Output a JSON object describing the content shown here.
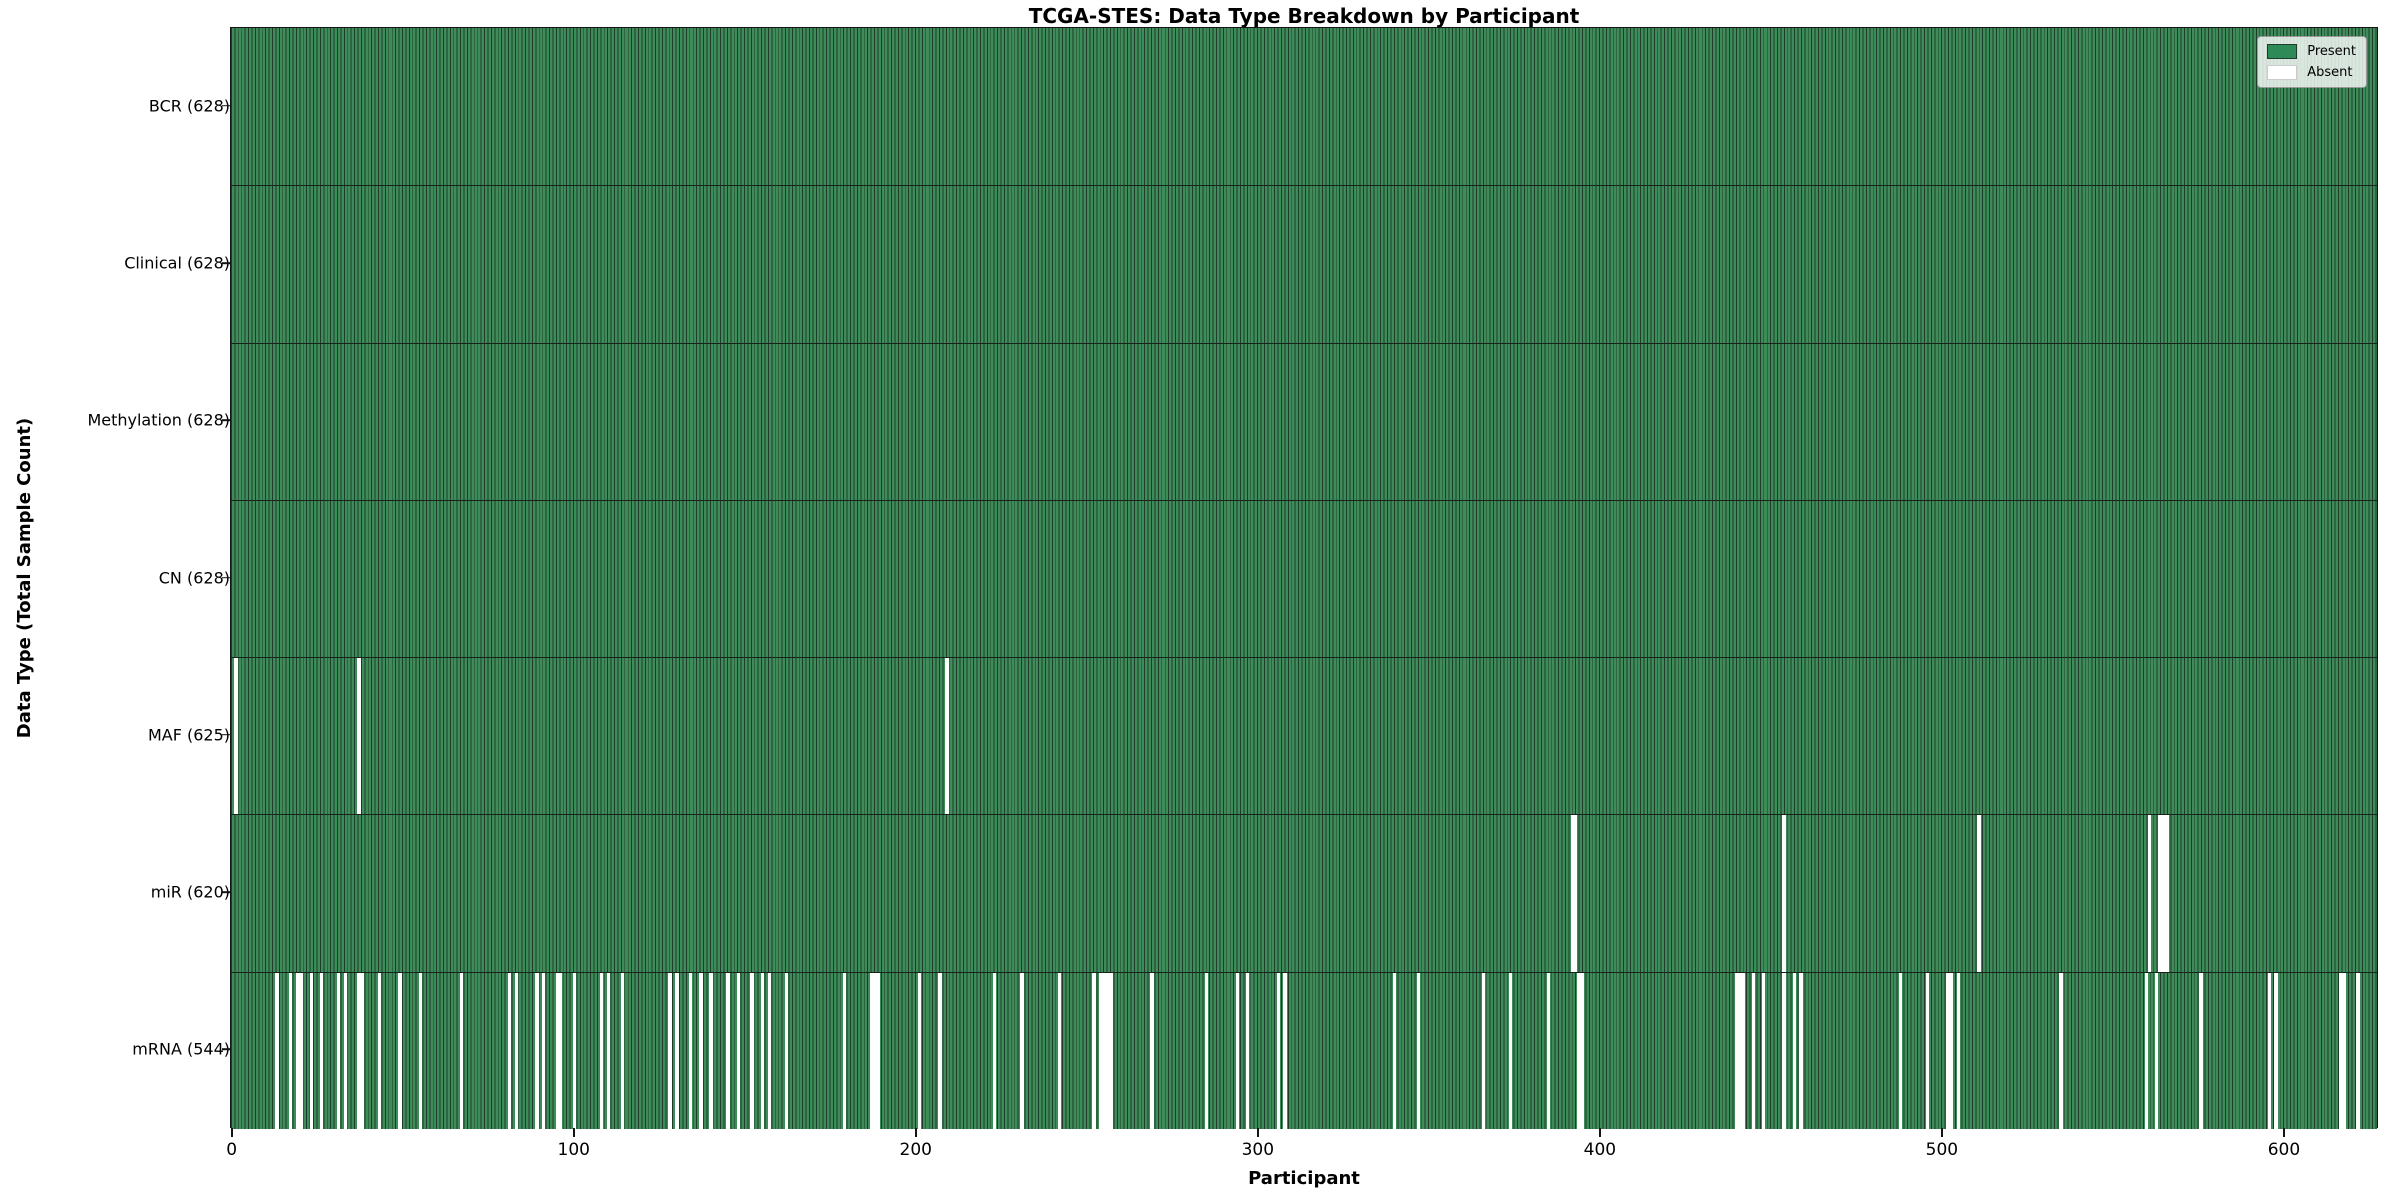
{
  "title": "TCGA-STES: Data Type Breakdown by Participant",
  "xlabel": "Participant",
  "ylabel": "Data Type (Total Sample Count)",
  "legend": {
    "present_label": "Present",
    "absent_label": "Absent"
  },
  "colors": {
    "present_fill": "#3e8c5a",
    "present_edge": "#1e3c2a",
    "legend_present": "#2e8b57",
    "absent": "#ffffff",
    "row_separator": "#17221b",
    "axis": "#141414"
  },
  "chart_data": {
    "type": "heatmap",
    "n_participants": 628,
    "x_ticks": [
      0,
      100,
      200,
      300,
      400,
      500,
      600
    ],
    "cell_states": [
      "Present",
      "Absent"
    ],
    "rows": [
      {
        "label": "BCR (628)",
        "data_type": "BCR",
        "present_count": 628,
        "absent_participants": []
      },
      {
        "label": "Clinical (628)",
        "data_type": "Clinical",
        "present_count": 628,
        "absent_participants": []
      },
      {
        "label": "Methylation (628)",
        "data_type": "Methylation",
        "present_count": 628,
        "absent_participants": []
      },
      {
        "label": "CN (628)",
        "data_type": "CN",
        "present_count": 628,
        "absent_participants": []
      },
      {
        "label": "MAF (625)",
        "data_type": "MAF",
        "present_count": 625,
        "absent_participants": [
          1,
          37,
          209
        ]
      },
      {
        "label": "miR (620)",
        "data_type": "miR",
        "present_count": 620,
        "absent_participants": [
          392,
          393,
          454,
          511,
          561,
          564,
          565,
          566
        ]
      },
      {
        "label": "mRNA (544)",
        "data_type": "mRNA",
        "present_count": 544,
        "absent_participants": [
          13,
          17,
          19,
          20,
          23,
          26,
          31,
          33,
          37,
          38,
          43,
          49,
          55,
          67,
          81,
          83,
          89,
          91,
          95,
          96,
          100,
          108,
          110,
          114,
          128,
          130,
          134,
          137,
          140,
          145,
          148,
          152,
          155,
          157,
          162,
          179,
          187,
          188,
          189,
          201,
          207,
          223,
          231,
          242,
          252,
          254,
          255,
          256,
          257,
          269,
          285,
          294,
          297,
          306,
          308,
          340,
          347,
          366,
          374,
          385,
          394,
          395,
          440,
          441,
          442,
          445,
          448,
          454,
          457,
          459,
          488,
          496,
          502,
          503,
          505,
          535,
          560,
          563,
          576,
          596,
          598,
          617,
          618,
          622
        ]
      }
    ]
  }
}
